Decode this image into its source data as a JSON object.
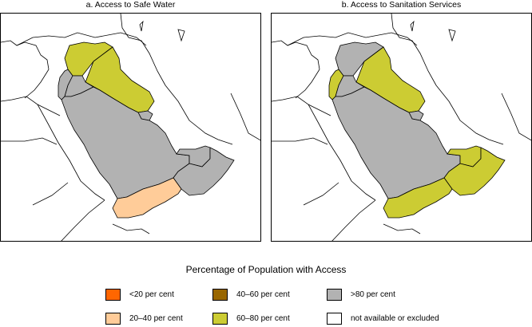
{
  "panels": [
    {
      "title": "a. Access to Safe Water",
      "regions": {
        "iraq": "60-80",
        "syria": "60-80",
        "jordan": ">80",
        "kuwait": ">80",
        "saudi": ">80",
        "uae": ">80",
        "oman": ">80",
        "yemen": "20-40",
        "levant": ">80"
      }
    },
    {
      "title": "b. Access to Sanitation Services",
      "regions": {
        "iraq": "60-80",
        "syria": ">80",
        "jordan": ">80",
        "kuwait": ">80",
        "saudi": ">80",
        "uae": "60-80",
        "oman": "60-80",
        "yemen": "60-80",
        "levant": "60-80"
      }
    }
  ],
  "legend": {
    "title": "Percentage of Population with Access",
    "items": [
      {
        "key": "<20",
        "label": "<20 per cent",
        "color": "#ff6600"
      },
      {
        "key": "40-60",
        "label": "40–60 per cent",
        "color": "#996600"
      },
      {
        "key": ">80",
        "label": ">80  per cent",
        "color": "#b2b2b2"
      },
      {
        "key": "20-40",
        "label": "20–40  per cent",
        "color": "#ffcc99"
      },
      {
        "key": "60-80",
        "label": "60–80  per cent",
        "color": "#cccc33"
      },
      {
        "key": "na",
        "label": "not available or excluded",
        "color": "#ffffff"
      }
    ]
  }
}
